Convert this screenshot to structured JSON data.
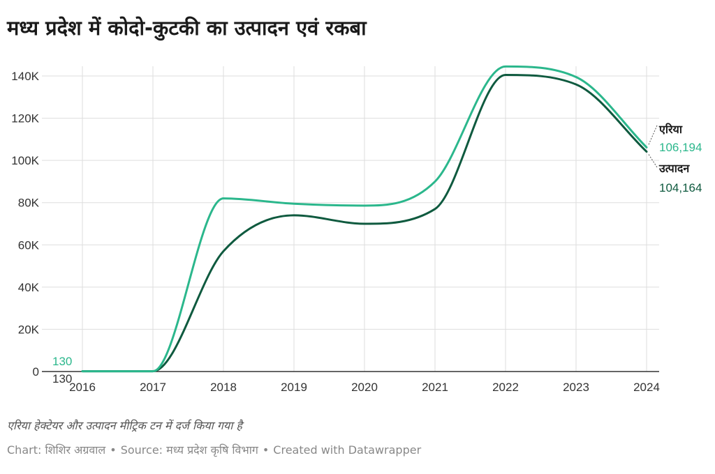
{
  "title": "मध्य प्रदेश में कोदो-कुटकी का उत्पादन एवं रकबा",
  "notes": "एरिया हेक्टेयर और उत्पादन मीट्रिक टन में दर्ज किया गया है",
  "footer": {
    "chart_credit": "Chart: शिशिर अग्रवाल",
    "source": "Source: मध्य प्रदेश कृषि विभाग",
    "created_with": "Created with Datawrapper",
    "separator": "•"
  },
  "colors": {
    "area": "#2bb78c",
    "production": "#0f5a3f",
    "grid": "#dddddd",
    "axis": "#333333"
  },
  "chart_data": {
    "type": "line",
    "title": "मध्य प्रदेश में कोदो-कुटकी का उत्पादन एवं रकबा",
    "xlabel": "",
    "ylabel": "",
    "x": [
      2016,
      2017,
      2018,
      2019,
      2020,
      2021,
      2022,
      2023,
      2024
    ],
    "ylim": [
      0,
      140000
    ],
    "yticks": [
      0,
      20000,
      40000,
      60000,
      80000,
      100000,
      120000,
      140000
    ],
    "ytick_labels": [
      "0",
      "20K",
      "40K",
      "60K",
      "80K",
      "100K",
      "120K",
      "140K"
    ],
    "xtick_labels": [
      "2016",
      "2017",
      "2018",
      "2019",
      "2020",
      "2021",
      "2022",
      "2023",
      "2024"
    ],
    "grid": true,
    "legend": "direct labels at line ends",
    "series": [
      {
        "name": "एरिया",
        "color": "#2bb78c",
        "values": [
          130,
          130,
          82000,
          79500,
          78600,
          90000,
          144500,
          139500,
          106194
        ],
        "start_label": "130",
        "end_label": "106,194"
      },
      {
        "name": "उत्पादन",
        "color": "#0f5a3f",
        "values": [
          130,
          130,
          57000,
          74000,
          70000,
          77000,
          140500,
          136000,
          104164
        ],
        "start_label": "130",
        "end_label": "104,164"
      }
    ]
  }
}
